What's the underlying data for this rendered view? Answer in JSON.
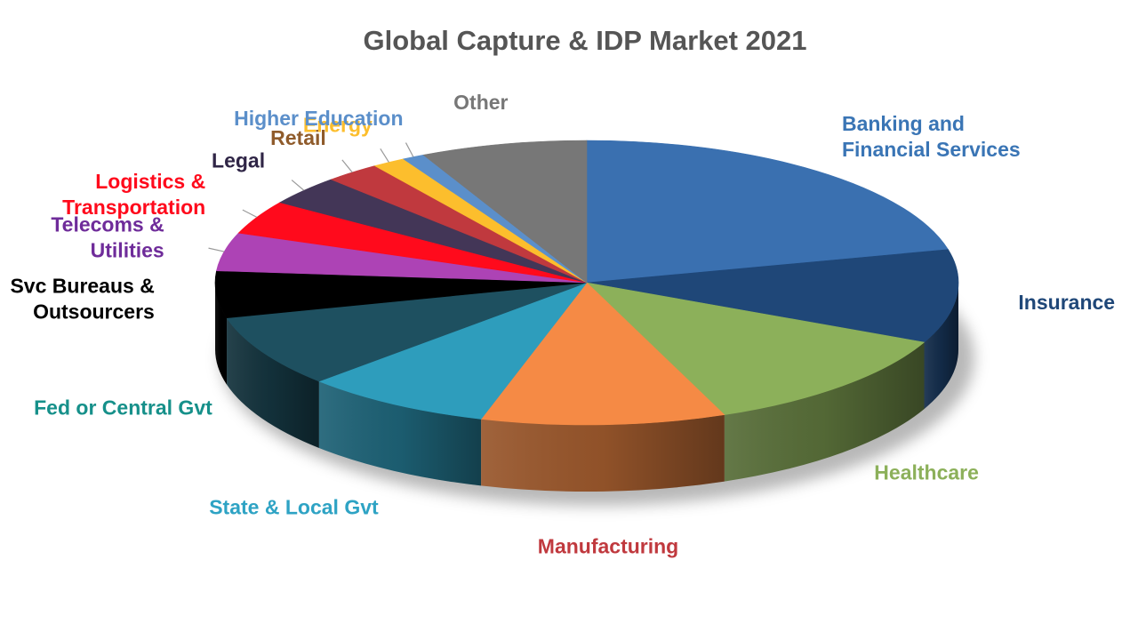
{
  "title": "Global Capture & IDP Market 2021",
  "chart_data": {
    "type": "pie",
    "title": "Global Capture & IDP Market 2021",
    "unit": "percent",
    "slices": [
      {
        "label": [
          "Banking and",
          "Financial Services"
        ],
        "value": 22.0,
        "color": "#3A70B0"
      },
      {
        "label": [
          "Insurance"
        ],
        "value": 11.0,
        "color": "#1F4778"
      },
      {
        "label": [
          "Healthcare"
        ],
        "value": 12.5,
        "color": "#8CB05A"
      },
      {
        "label": [
          "Manufacturing"
        ],
        "value": 11.0,
        "color": "#F58A45"
      },
      {
        "label": [
          "State & Local Gvt"
        ],
        "value": 8.5,
        "color": "#2E9DBC"
      },
      {
        "label": [
          "Fed or Central Gvt"
        ],
        "value": 8.5,
        "color": "#1E5060"
      },
      {
        "label": [
          "Svc Bureaus &",
          "Outsourcers"
        ],
        "value": 5.5,
        "color": "#000000"
      },
      {
        "label": [
          "Telecoms &",
          "Utilities"
        ],
        "value": 4.5,
        "color": "#AD43B5"
      },
      {
        "label": [
          "Logistics &",
          "Transportation"
        ],
        "value": 4.0,
        "color": "#FF0A1C"
      },
      {
        "label": [
          "Legal"
        ],
        "value": 3.5,
        "color": "#433657"
      },
      {
        "label": [
          "Retail"
        ],
        "value": 2.5,
        "color": "#C0393E"
      },
      {
        "label": [
          "Energy"
        ],
        "value": 1.5,
        "color": "#FCBE2D"
      },
      {
        "label": [
          "Higher Education"
        ],
        "value": 1.0,
        "color": "#5B8FCA"
      },
      {
        "label": [
          "Other"
        ],
        "value": 7.5,
        "color": "#777777"
      }
    ],
    "label_colors": [
      "#3A75B5",
      "#1F4778",
      "#8CB05A",
      "#C0393E",
      "#2EA3C4",
      "#16908A",
      "#000000",
      "#6F2C9A",
      "#FF0A1C",
      "#2F2546",
      "#8F5B2B",
      "#FCBE2D",
      "#5B8FCA",
      "#777777"
    ]
  }
}
